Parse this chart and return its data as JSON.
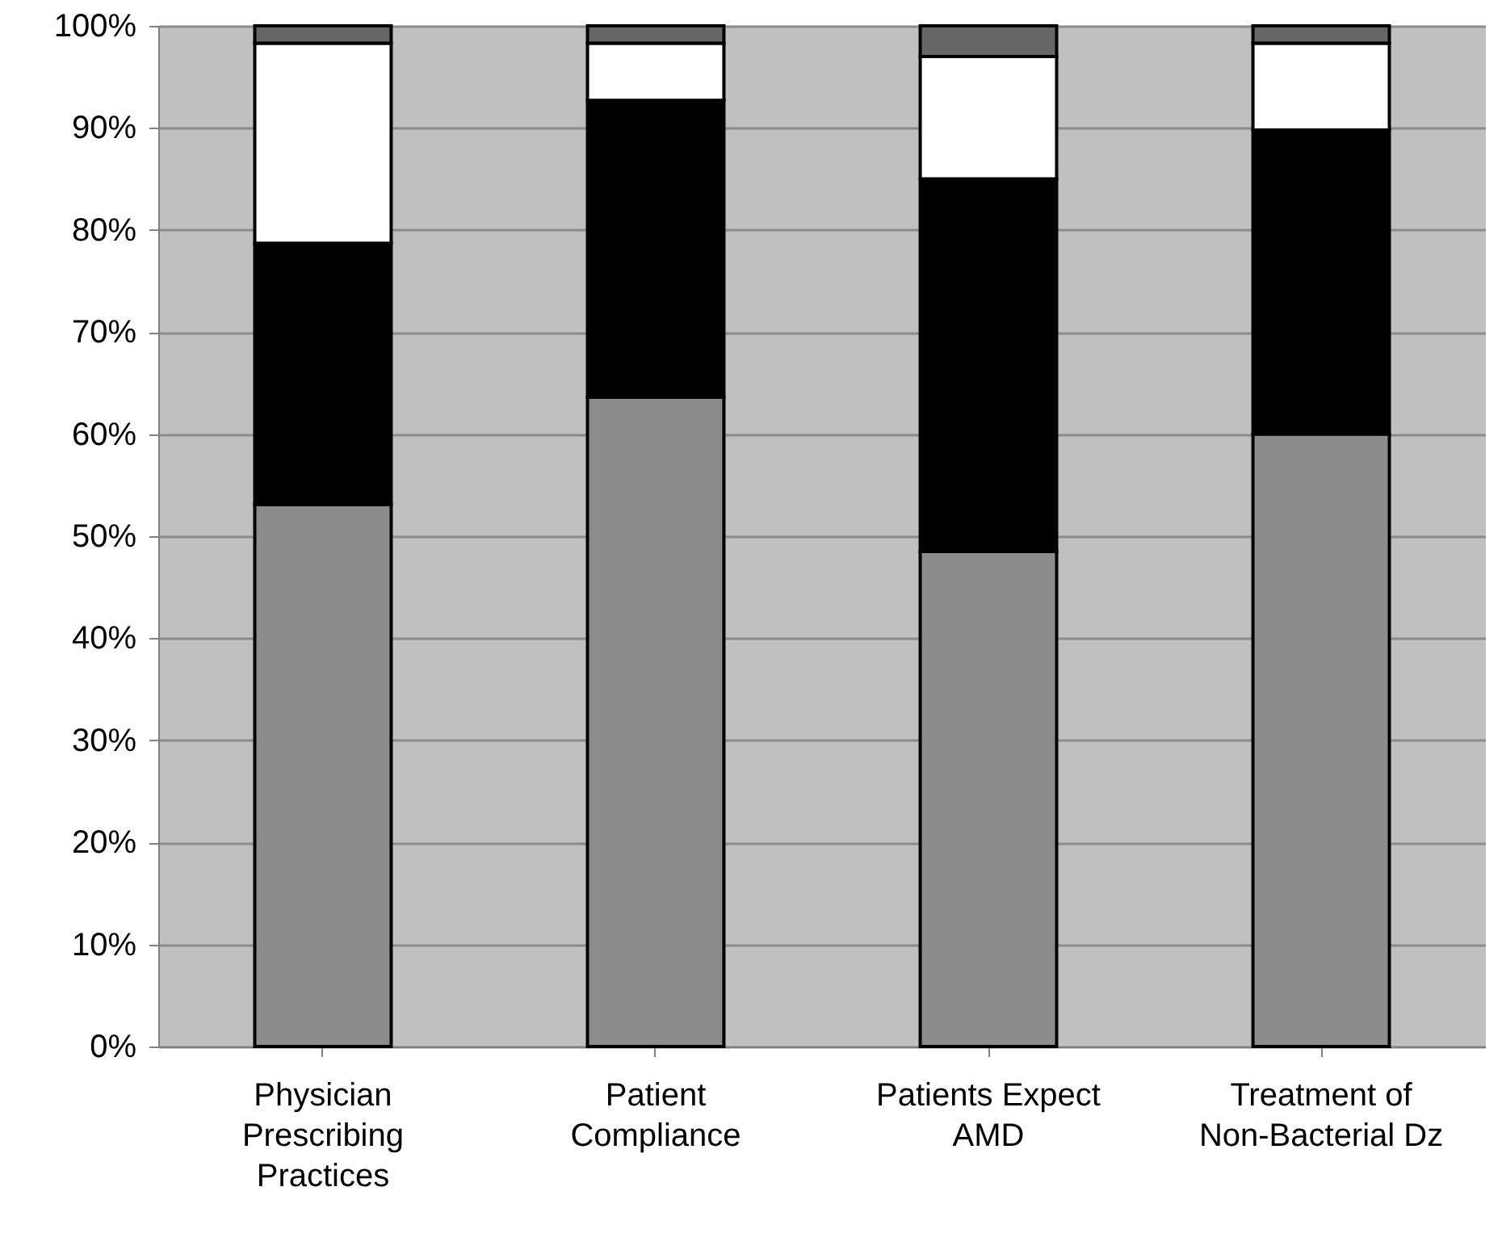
{
  "chart_data": {
    "type": "bar",
    "stacked": true,
    "categories": [
      "Physician Prescribing Practices",
      "Patient Compliance",
      "Patients Expect AMD",
      "Treatment of Non-Bacterial Dz"
    ],
    "series": [
      {
        "color": "#8c8c8c",
        "values": [
          53.1,
          63.6,
          48.5,
          60.0
        ]
      },
      {
        "color": "#000000",
        "values": [
          25.6,
          29.1,
          36.5,
          29.8
        ]
      },
      {
        "color": "#ffffff",
        "values": [
          19.6,
          5.6,
          12.0,
          8.5
        ]
      },
      {
        "color": "#666666",
        "values": [
          1.7,
          1.7,
          3.0,
          1.7
        ]
      }
    ],
    "ylim": [
      0,
      100
    ],
    "yticks": [
      {
        "value": 0,
        "label": "0%"
      },
      {
        "value": 10,
        "label": "10%"
      },
      {
        "value": 20,
        "label": "20%"
      },
      {
        "value": 30,
        "label": "30%"
      },
      {
        "value": 40,
        "label": "40%"
      },
      {
        "value": 50,
        "label": "50%"
      },
      {
        "value": 60,
        "label": "60%"
      },
      {
        "value": 70,
        "label": "70%"
      },
      {
        "value": 80,
        "label": "80%"
      },
      {
        "value": 90,
        "label": "90%"
      },
      {
        "value": 100,
        "label": "100%"
      }
    ],
    "grid": "y"
  }
}
